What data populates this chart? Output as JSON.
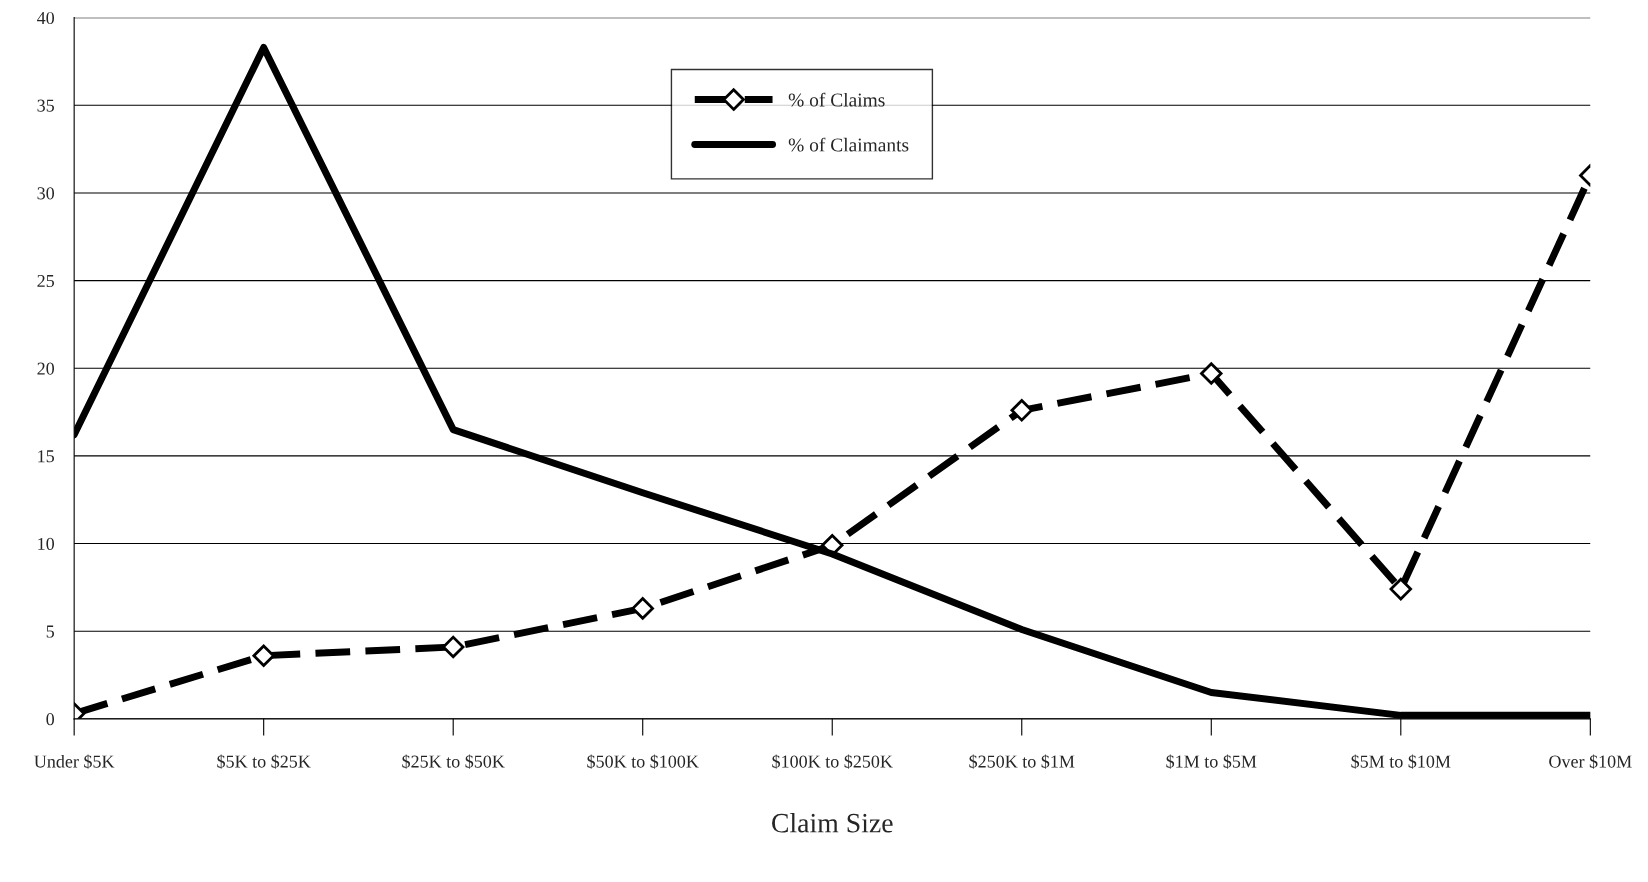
{
  "chart_data": {
    "type": "line",
    "xlabel": "Claim Size",
    "categories": [
      "Under $5K",
      "$5K to $25K",
      "$25K to $50K",
      "$50K to $100K",
      "$100K to $250K",
      "$250K to $1M",
      "$1M to $5M",
      "$5M to $10M",
      "Over $10M"
    ],
    "series": [
      {
        "name": "% of Claims",
        "color": "#000000",
        "marker": "diamond",
        "line_style": "dashed",
        "values": [
          0.3,
          3.6,
          4.1,
          6.3,
          9.9,
          17.6,
          19.7,
          7.4,
          31
        ]
      },
      {
        "name": "% of Claimants",
        "color": "#000000",
        "marker": "none",
        "line_style": "solid",
        "values": [
          16.2,
          38.3,
          16.5,
          12.9,
          9.4,
          5.1,
          1.5,
          0.2,
          0.2
        ]
      }
    ],
    "ylim": [
      0,
      40
    ],
    "yticks": [
      0,
      5,
      10,
      15,
      20,
      25,
      30,
      35,
      40
    ],
    "grid": "y",
    "legend": "top center"
  }
}
